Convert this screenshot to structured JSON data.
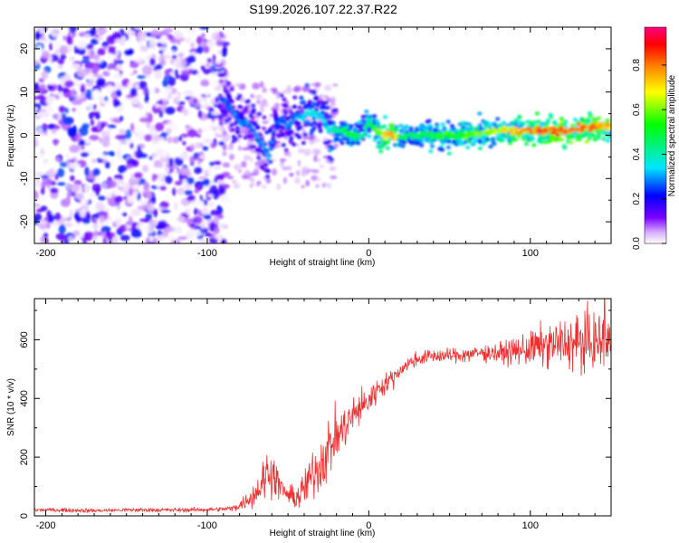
{
  "page_title": "S199.2026.107.22.37.R22",
  "chart_data": [
    {
      "type": "heatmap",
      "title": "S199.2026.107.22.37.R22",
      "xlabel": "Height of straight line (km)",
      "ylabel": "Frequency (Hz)",
      "xlim": [
        -207,
        150
      ],
      "ylim": [
        -25,
        25
      ],
      "xticks": [
        -200,
        -100,
        0,
        100
      ],
      "yticks": [
        -20,
        -10,
        0,
        10,
        20
      ],
      "grid": false,
      "colorbar": {
        "label": "Normalized spectral amplitude",
        "range": [
          0.0,
          0.97
        ],
        "ticks": [
          0.0,
          0.2,
          0.4,
          0.6,
          0.8
        ],
        "tick_labels": [
          "0.0",
          "0.2",
          "0.4",
          "0.6",
          "0.8"
        ],
        "colormap": [
          "#ffffff",
          "#7a00ff",
          "#0000ff",
          "#00e5ff",
          "#00ff00",
          "#ffff00",
          "#ff8000",
          "#ff0000",
          "#ff0080"
        ]
      },
      "noise_region_km": [
        -207,
        -88
      ],
      "noise_amplitude_range": [
        0.0,
        0.3
      ],
      "ridge": {
        "x": [
          -92,
          -85,
          -80,
          -75,
          -70,
          -66,
          -62,
          -58,
          -54,
          -50,
          -46,
          -42,
          -38,
          -34,
          -30,
          -25,
          -20,
          -15,
          -10,
          -5,
          0,
          3,
          8,
          15,
          20,
          30,
          40,
          60,
          80,
          100,
          120,
          140,
          150
        ],
        "freq": [
          9,
          6,
          3,
          3,
          0,
          -2,
          -5,
          2,
          4,
          2,
          4,
          4,
          5,
          5,
          5,
          1,
          1,
          1,
          0,
          0,
          3,
          2,
          0,
          0,
          0,
          0,
          0,
          0,
          1,
          1,
          1,
          2,
          2
        ],
        "amplitude": [
          0.25,
          0.3,
          0.3,
          0.3,
          0.3,
          0.3,
          0.35,
          0.25,
          0.3,
          0.3,
          0.3,
          0.35,
          0.4,
          0.4,
          0.35,
          0.4,
          0.45,
          0.5,
          0.55,
          0.45,
          0.5,
          0.55,
          0.7,
          0.85,
          0.5,
          0.5,
          0.55,
          0.6,
          0.7,
          0.85,
          0.9,
          0.85,
          0.8
        ]
      }
    },
    {
      "type": "line",
      "xlabel": "Height of straight line (km)",
      "ylabel": "SNR (10 * v/v)",
      "xlim": [
        -207,
        150
      ],
      "ylim": [
        0,
        740
      ],
      "xticks": [
        -200,
        -100,
        0,
        100
      ],
      "yticks": [
        0,
        200,
        400,
        600
      ],
      "grid": false,
      "series": [
        {
          "name": "SNR",
          "color": "#f03030",
          "x": [
            -207,
            -190,
            -170,
            -150,
            -130,
            -110,
            -95,
            -85,
            -80,
            -75,
            -70,
            -65,
            -62,
            -58,
            -55,
            -50,
            -45,
            -40,
            -35,
            -30,
            -25,
            -20,
            -15,
            -10,
            -5,
            0,
            5,
            10,
            15,
            20,
            25,
            30,
            40,
            50,
            60,
            70,
            80,
            90,
            100,
            110,
            120,
            130,
            140,
            150
          ],
          "y": [
            20,
            20,
            18,
            20,
            20,
            20,
            22,
            25,
            35,
            55,
            80,
            120,
            160,
            130,
            100,
            70,
            60,
            90,
            140,
            180,
            230,
            270,
            300,
            340,
            370,
            390,
            430,
            450,
            470,
            500,
            520,
            535,
            545,
            545,
            550,
            555,
            555,
            560,
            570,
            580,
            585,
            590,
            590,
            595
          ],
          "noise": [
            6,
            6,
            6,
            6,
            6,
            6,
            6,
            8,
            15,
            25,
            45,
            70,
            80,
            55,
            40,
            30,
            35,
            60,
            80,
            90,
            90,
            80,
            70,
            60,
            50,
            50,
            40,
            30,
            28,
            25,
            22,
            22,
            22,
            22,
            25,
            25,
            30,
            40,
            55,
            65,
            75,
            90,
            90,
            80
          ],
          "peak": {
            "x": 146,
            "y": 740
          }
        }
      ]
    }
  ]
}
